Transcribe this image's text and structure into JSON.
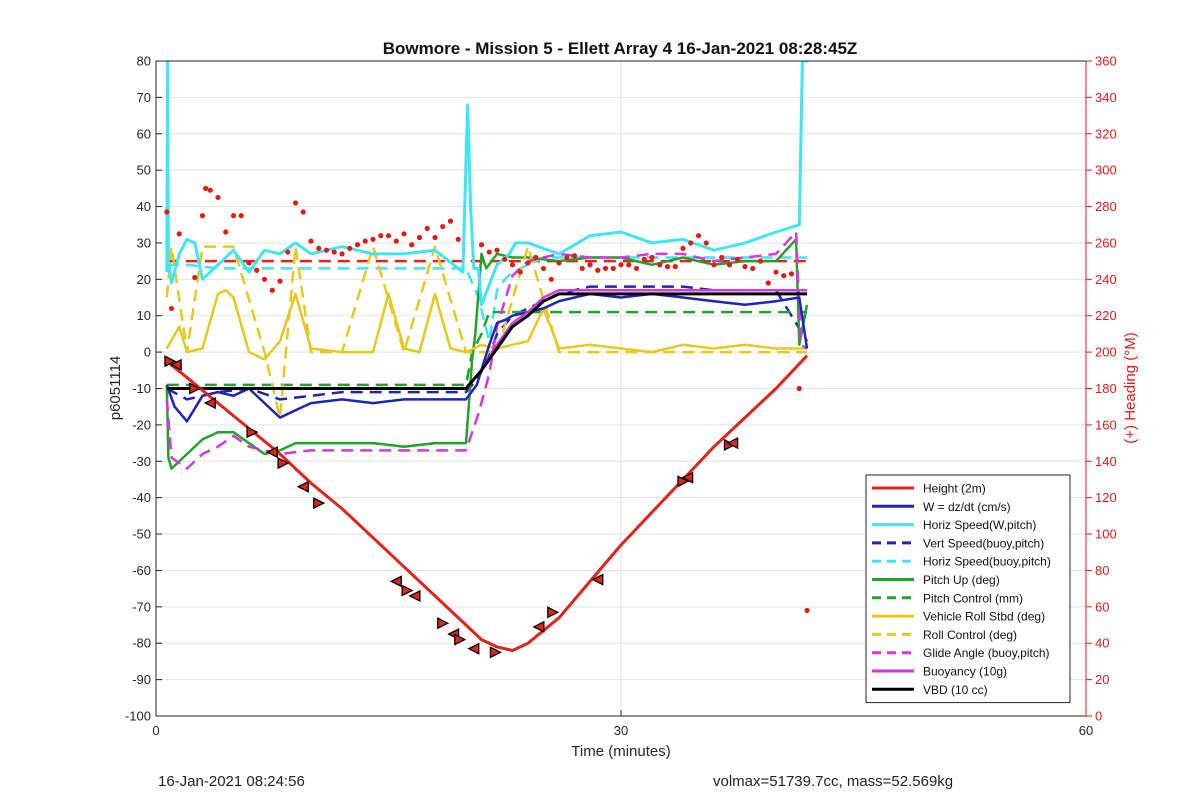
{
  "footer": {
    "left_text": "16-Jan-2021 08:24:56",
    "right_text": "volmax=51739.7cc, mass=52.569kg"
  },
  "chart_data": {
    "type": "line",
    "title": "Bowmore - Mission 5 - Ellett Array 4 16-Jan-2021 08:28:45Z",
    "xlabel": "Time (minutes)",
    "ylabel": "p6051114",
    "y2label": "(+) Heading (°M)",
    "xlim": [
      0,
      60
    ],
    "ylim": [
      -100,
      80
    ],
    "y2lim": [
      0,
      360
    ],
    "xticks": [
      0,
      30,
      60
    ],
    "yticks": [
      -100,
      -90,
      -80,
      -70,
      -60,
      -50,
      -40,
      -30,
      -20,
      -10,
      0,
      10,
      20,
      30,
      40,
      50,
      60,
      70,
      80
    ],
    "y2ticks": [
      0,
      20,
      40,
      60,
      80,
      100,
      120,
      140,
      160,
      180,
      200,
      220,
      240,
      260,
      280,
      300,
      320,
      340,
      360
    ],
    "grid": true,
    "legend_position": "bottom-right",
    "colors": {
      "red": "#e0231b",
      "blue": "#1f24b8",
      "cyan": "#3fe6f2",
      "green": "#22a22a",
      "yellow": "#e6c81e",
      "magenta": "#d636dc",
      "black": "#000000",
      "heading": "#e31b17"
    },
    "series": [
      {
        "name": "Height (2m)",
        "color": "red",
        "style": "solid",
        "width": 3,
        "x": [
          0.7,
          2,
          4,
          6,
          8,
          10,
          12,
          14,
          16,
          18,
          20,
          21,
          22,
          23,
          24,
          26,
          28,
          30,
          32,
          34,
          36,
          38,
          40,
          42
        ],
        "y": [
          -2.5,
          -7,
          -14,
          -21,
          -28,
          -36,
          -43,
          -51,
          -59,
          -67,
          -75,
          -79,
          -81,
          -82,
          -80,
          -73,
          -63,
          -53,
          -44,
          -35,
          -26,
          -18,
          -10,
          -1
        ]
      },
      {
        "name": "W = dz/dt (cm/s)",
        "color": "blue",
        "style": "solid",
        "width": 2.5,
        "x": [
          0.7,
          1.2,
          2,
          3,
          4,
          5,
          6,
          7,
          8,
          9,
          10,
          12,
          14,
          16,
          18,
          20,
          20.7,
          21.5,
          22,
          22.6,
          23,
          24,
          25,
          26,
          28,
          30,
          32,
          34,
          36,
          38,
          40,
          41.5,
          42
        ],
        "y": [
          -9,
          -15,
          -19,
          -12,
          -11,
          -12,
          -10,
          -14,
          -18,
          -16,
          -14,
          -13,
          -14,
          -13,
          -13,
          -13,
          -9,
          2,
          8,
          9,
          10,
          11,
          12,
          14,
          16,
          15,
          16,
          15,
          14,
          13,
          14,
          15,
          1
        ]
      },
      {
        "name": "Horiz Speed(W,pitch)",
        "color": "cyan",
        "style": "solid",
        "width": 3,
        "x": [
          0.7,
          0.75,
          0.8,
          1,
          1.5,
          2,
          2.5,
          3,
          4,
          5,
          6,
          7,
          8,
          9,
          10,
          12,
          14,
          16,
          18,
          19.8,
          20.1,
          20.3,
          20.5,
          20.8,
          21,
          22,
          22.8,
          23.2,
          24,
          26,
          28,
          30,
          32,
          34,
          36,
          38,
          40,
          41.5,
          41.7,
          41.9,
          42.1
        ],
        "y": [
          22,
          80,
          25,
          19,
          27,
          31,
          30,
          20,
          24,
          28,
          22,
          28,
          27,
          30,
          27,
          29,
          27,
          27,
          28,
          22,
          68,
          40,
          23,
          23,
          13,
          24,
          27,
          30,
          30,
          27,
          32,
          33,
          30,
          31,
          28,
          30,
          33,
          35,
          80,
          80,
          80
        ]
      },
      {
        "name": "Vert Speed(buoy,pitch)",
        "color": "blue",
        "style": "dashed",
        "width": 2.5,
        "x": [
          0.7,
          2,
          4,
          6,
          8,
          10,
          12,
          14,
          16,
          18,
          20,
          20.8,
          21.5,
          22,
          23,
          24,
          26,
          28,
          30,
          32,
          34,
          36,
          38,
          40,
          42
        ],
        "y": [
          -10,
          -13,
          -11,
          -10,
          -13,
          -12,
          -11,
          -11,
          -11,
          -11,
          -11,
          -7,
          -1,
          5,
          10,
          12,
          16,
          18,
          18,
          18,
          18,
          17,
          17,
          17,
          3
        ]
      },
      {
        "name": "Horiz Speed(buoy,pitch)",
        "color": "cyan",
        "style": "dashed",
        "width": 2.5,
        "x": [
          0.7,
          2,
          4,
          6,
          8,
          10,
          12,
          14,
          16,
          18,
          20,
          20.8,
          21.5,
          22,
          22.5,
          23,
          24,
          25,
          26,
          28,
          30,
          32,
          34,
          36,
          38,
          40,
          42
        ],
        "y": [
          24,
          24,
          23,
          23,
          23,
          23,
          23,
          23,
          23,
          23,
          23,
          15,
          3,
          17,
          20,
          22,
          24,
          26,
          26,
          26,
          26,
          26,
          26,
          26,
          26,
          26,
          26
        ]
      },
      {
        "name": "Pitch Up (deg)",
        "color": "green",
        "style": "solid",
        "width": 2.5,
        "x": [
          0.7,
          0.8,
          1,
          2,
          3,
          4,
          5,
          6,
          7,
          8,
          9,
          10,
          12,
          14,
          16,
          18,
          20,
          20.4,
          20.6,
          21,
          21.3,
          22,
          23,
          24,
          26,
          28,
          30,
          32,
          34,
          36,
          38,
          40,
          41.3,
          41.5,
          42
        ],
        "y": [
          -9,
          -29,
          -32,
          -28,
          -24,
          -22,
          -22,
          -25,
          -28,
          -27,
          -25,
          -25,
          -25,
          -25,
          -26,
          -25,
          -25,
          -2,
          5,
          27,
          23,
          27,
          26,
          26,
          25,
          26,
          26,
          24,
          26,
          24,
          25,
          25,
          31,
          2,
          13
        ]
      },
      {
        "name": "Pitch Control (mm)",
        "color": "green",
        "style": "dashed",
        "width": 2.5,
        "x": [
          0.7,
          2,
          6,
          10,
          14,
          18,
          20,
          20.4,
          21,
          21.5,
          22,
          23,
          24,
          26,
          30,
          34,
          38,
          42
        ],
        "y": [
          -9,
          -9,
          -9,
          -9,
          -9,
          -9,
          -9,
          0,
          5,
          11,
          11,
          11,
          11,
          11,
          11,
          11,
          11,
          11
        ]
      },
      {
        "name": "Vehicle Roll Stbd (deg)",
        "color": "yellow",
        "style": "solid",
        "width": 2.5,
        "x": [
          0.7,
          1.5,
          2,
          3,
          4,
          4.5,
          5,
          6,
          7,
          8,
          9,
          10,
          12,
          14,
          15,
          16,
          17,
          18,
          19,
          20,
          21,
          22,
          23,
          24,
          25,
          26,
          28,
          30,
          32,
          34,
          36,
          38,
          40,
          42
        ],
        "y": [
          1,
          7,
          0,
          1,
          16,
          17,
          15,
          0,
          -2,
          3,
          16,
          1,
          0,
          0,
          16,
          1,
          0,
          16,
          1,
          0,
          2,
          1,
          2,
          3,
          12,
          1,
          2,
          1,
          0,
          2,
          1,
          2,
          1,
          1
        ]
      },
      {
        "name": "Roll Control (deg)",
        "color": "yellow",
        "style": "dashed",
        "width": 2.5,
        "x": [
          0.7,
          1,
          2,
          3,
          5,
          7,
          8,
          9,
          10,
          12,
          14,
          16,
          18,
          20,
          22,
          24,
          26,
          28,
          30,
          32,
          34,
          36,
          38,
          40,
          42
        ],
        "y": [
          15,
          29,
          0,
          29,
          29,
          0,
          -18,
          29,
          0,
          0,
          29,
          0,
          29,
          0,
          0,
          29,
          0,
          0,
          0,
          0,
          0,
          0,
          0,
          0,
          0
        ]
      },
      {
        "name": "Glide Angle (buoy,pitch)",
        "color": "magenta",
        "style": "dashed",
        "width": 2.5,
        "x": [
          0.7,
          1,
          2,
          3,
          4,
          5,
          6,
          8,
          10,
          12,
          14,
          16,
          18,
          20,
          20.8,
          21.5,
          22,
          23,
          24,
          26,
          28,
          30,
          32,
          34,
          36,
          38,
          40,
          41.3,
          41.6,
          42
        ],
        "y": [
          -13,
          -29,
          -32,
          -28,
          -26,
          -23,
          -26,
          -28,
          -27,
          -27,
          -27,
          -27,
          -27,
          -27,
          -17,
          -6,
          7,
          21,
          25,
          27,
          26,
          26,
          27,
          27,
          25,
          26,
          27,
          33,
          2,
          1
        ]
      },
      {
        "name": "Buoyancy (10g)",
        "color": "magenta",
        "style": "solid",
        "width": 2.5,
        "x": [
          0.7,
          20,
          21,
          22,
          23,
          24,
          25,
          26,
          28,
          30,
          34,
          38,
          40,
          42
        ],
        "y": [
          -10,
          -10,
          -5,
          2,
          8,
          11,
          15,
          17,
          17,
          17,
          17,
          17,
          17,
          17
        ]
      },
      {
        "name": "VBD (10 cc)",
        "color": "black",
        "style": "solid",
        "width": 3,
        "x": [
          0.7,
          20,
          21,
          22,
          23,
          24,
          25,
          26,
          28,
          30,
          34,
          38,
          40,
          42
        ],
        "y": [
          -10,
          -10,
          -5,
          1,
          7,
          10,
          14,
          16,
          16,
          16,
          16,
          16,
          16,
          16
        ]
      }
    ],
    "heading_reference": {
      "y2": 250,
      "color": "red",
      "style": "dashed"
    },
    "heading_points": {
      "axis": "right",
      "x": [
        0.7,
        1,
        1.5,
        2.5,
        3,
        3.2,
        3.5,
        4,
        4.5,
        5,
        5.5,
        6,
        6.5,
        7,
        7.5,
        8,
        8.5,
        9,
        9.5,
        10,
        10.5,
        11,
        11.5,
        12,
        12.5,
        13,
        13.5,
        14,
        14.5,
        15,
        15.5,
        16,
        16.5,
        17,
        17.5,
        18,
        18.5,
        19,
        19.5,
        21,
        21.5,
        22,
        22.5,
        23,
        23.5,
        24,
        24.5,
        25,
        25.5,
        26,
        26.5,
        27,
        27.5,
        28,
        28.5,
        29,
        29.5,
        30,
        30.5,
        31,
        31.5,
        32,
        32.5,
        33,
        33.5,
        34,
        34.5,
        35,
        35.5,
        36,
        36.5,
        37,
        37.5,
        38,
        38.5,
        39,
        39.5,
        40,
        40.5,
        41,
        41.5,
        42
      ],
      "y": [
        277,
        224,
        265,
        241,
        275,
        290,
        289,
        285,
        266,
        275,
        275,
        249,
        245,
        240,
        234,
        239,
        255,
        282,
        277,
        261,
        257,
        256,
        255,
        254,
        257,
        259,
        261,
        262,
        264,
        264,
        261,
        265,
        259,
        263,
        268,
        263,
        269,
        272,
        262,
        259,
        255,
        256,
        251,
        248,
        244,
        249,
        252,
        246,
        240,
        249,
        252,
        253,
        246,
        248,
        245,
        246,
        246,
        248,
        248,
        246,
        251,
        252,
        248,
        247,
        247,
        257,
        260,
        264,
        260,
        248,
        252,
        248,
        251,
        247,
        246,
        250,
        238,
        244,
        242,
        243,
        180,
        58
      ]
    },
    "height_markers": {
      "symbol": "triangle",
      "x": [
        0.9,
        1.3,
        2.5,
        3.5,
        6.2,
        7.5,
        8.2,
        9.5,
        10.5,
        15.5,
        16.2,
        16.7,
        18.5,
        19.2,
        19.6,
        20.5,
        21.9,
        24.7,
        25.6,
        28.5,
        34,
        34.3,
        37,
        37.2
      ],
      "y": [
        -2.5,
        -3.5,
        -10,
        -14,
        -22,
        -27.5,
        -30.5,
        -37,
        -41.5,
        -63,
        -65.5,
        -67,
        -74.5,
        -77.5,
        -79,
        -81.5,
        -82.5,
        -75.5,
        -71.5,
        -62.5,
        -35.5,
        -34.5,
        -25.5,
        -25
      ]
    }
  }
}
